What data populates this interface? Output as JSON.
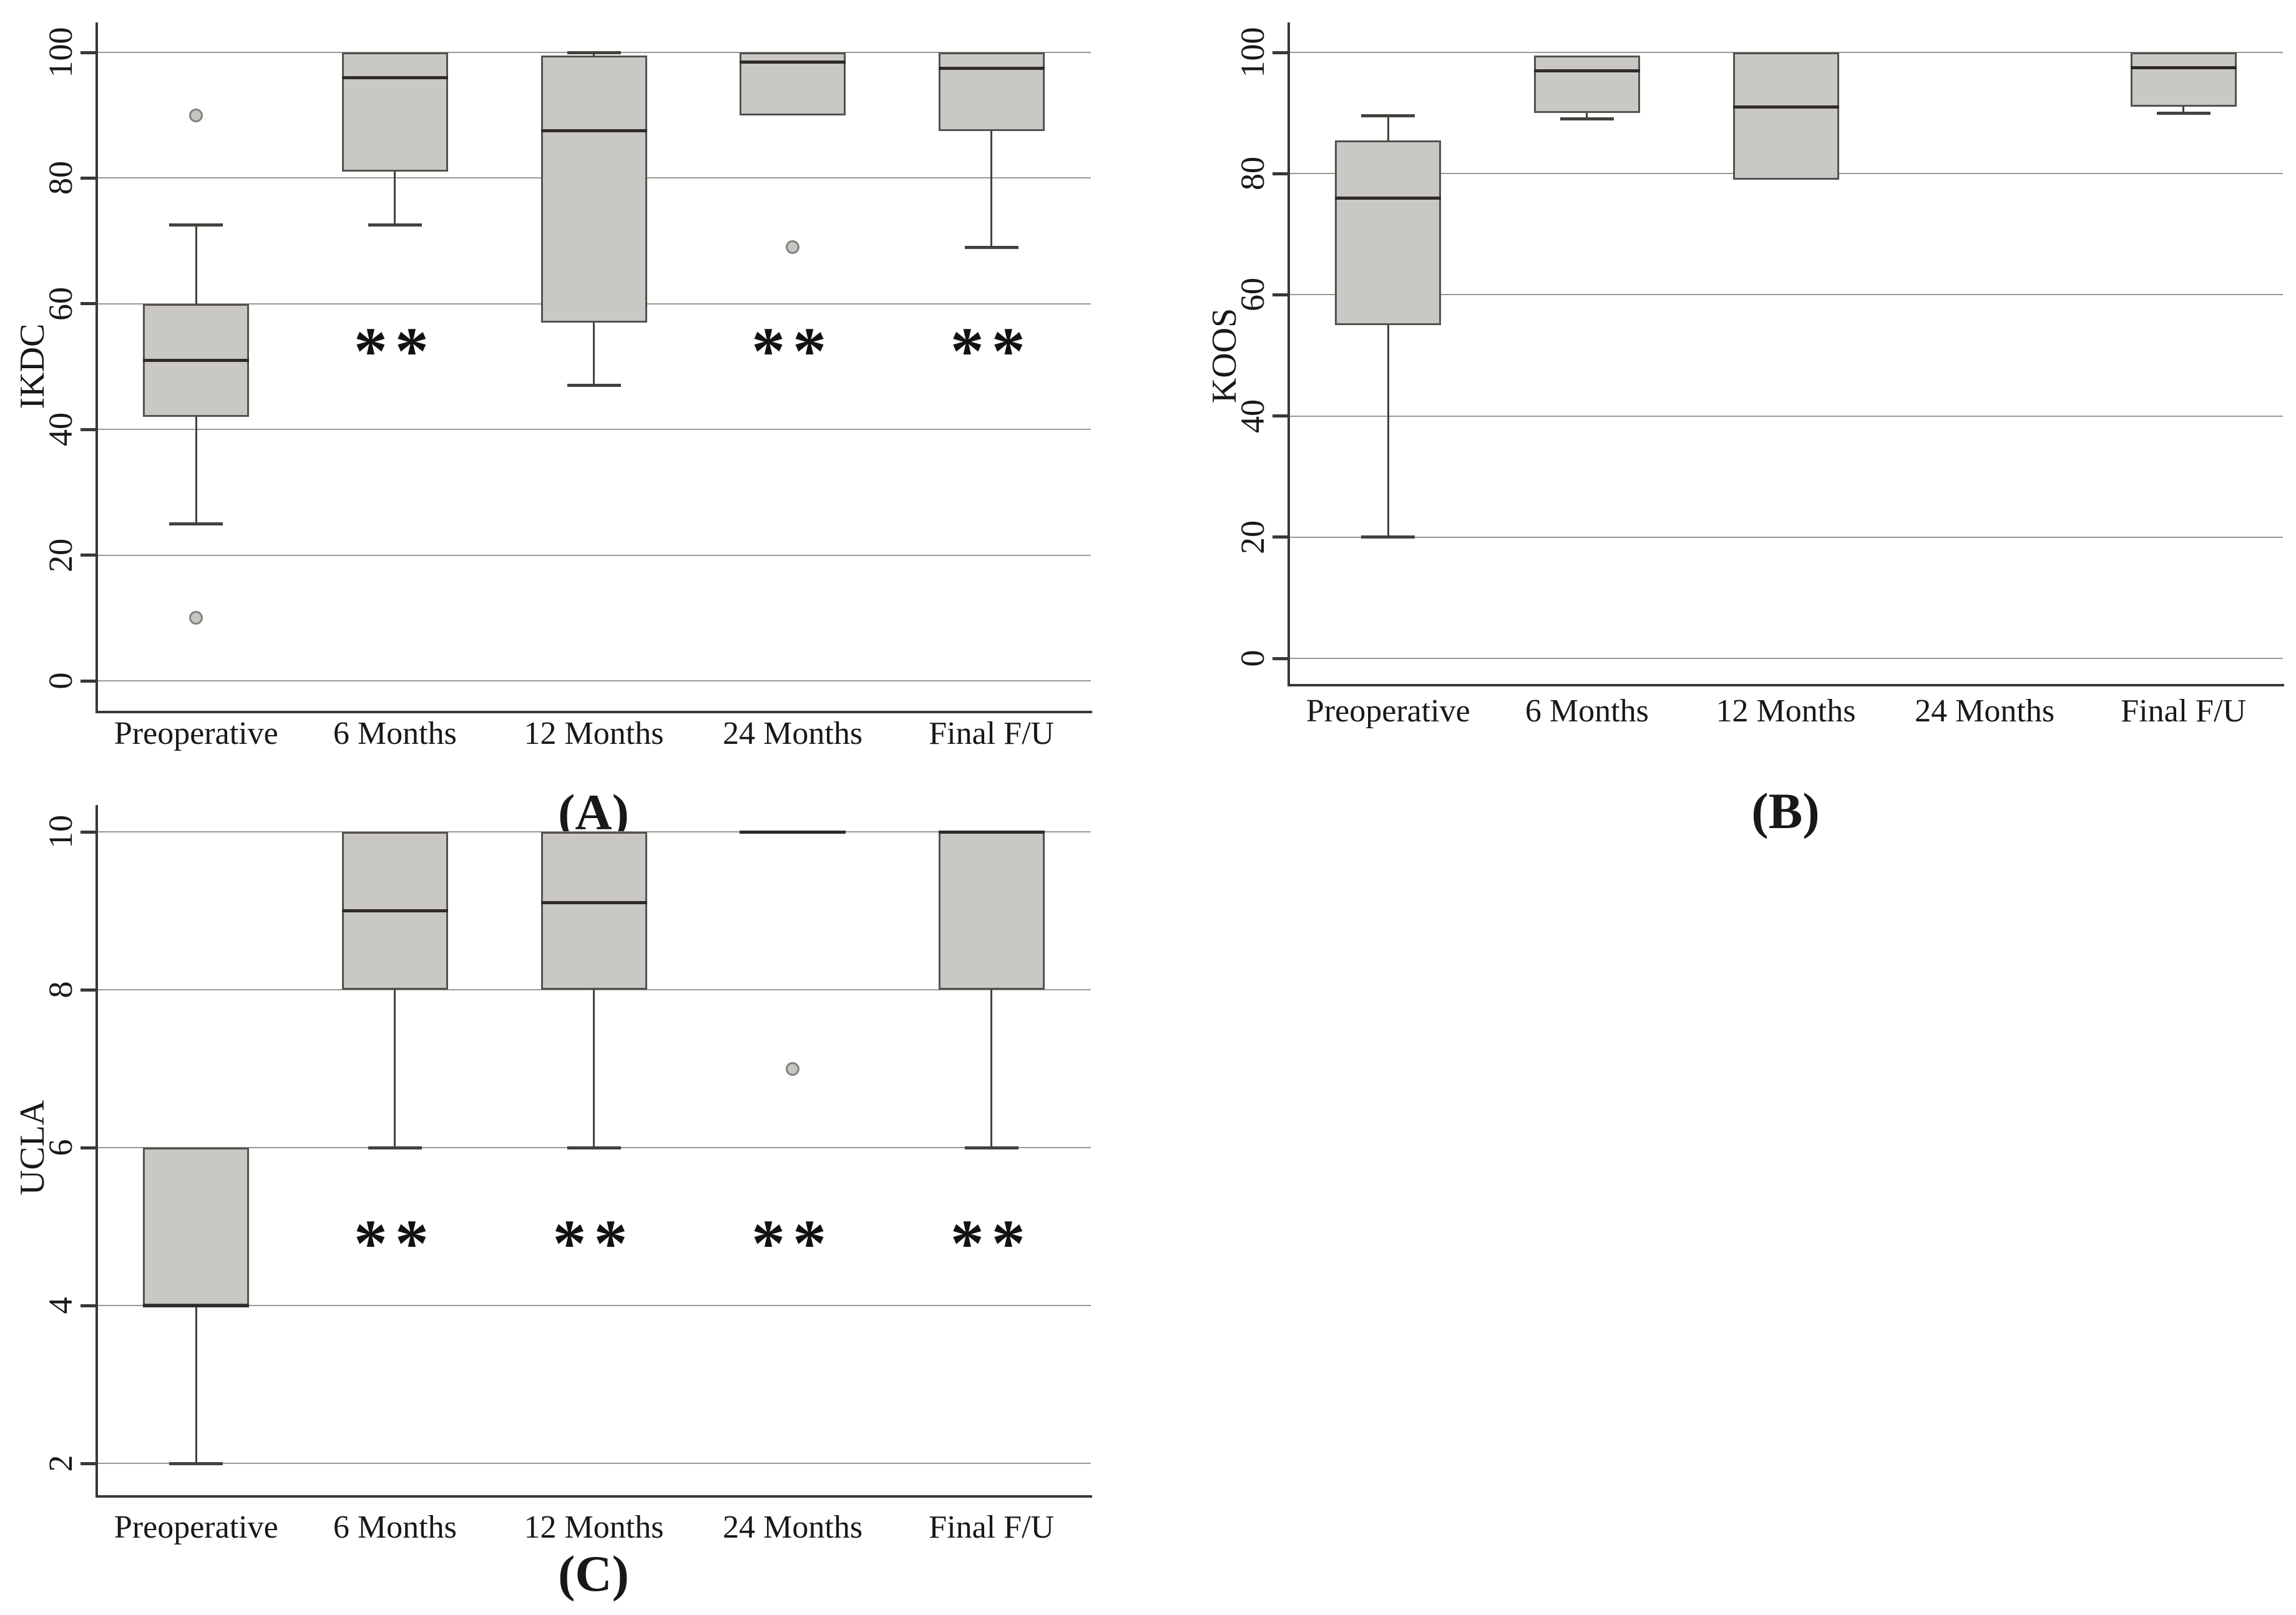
{
  "colors": {
    "background": "#ffffff",
    "box_fill": "#c9c8c5",
    "box_border": "#55514c",
    "median": "#2e2b28",
    "grid": "#9b9995",
    "axis": "#3c3935",
    "whisker": "#45423e",
    "outlier_fill": "#c6c5c2",
    "outlier_border": "#83817d",
    "text": "#1a1817"
  },
  "chart_data": [
    {
      "type": "box",
      "panel_label": "(A)",
      "ylabel": "IKDC",
      "ylim": [
        0,
        100
      ],
      "yticks": [
        0,
        20,
        40,
        60,
        80,
        100
      ],
      "grid": true,
      "legend": false,
      "categories": [
        "Preoperative",
        "6 Months",
        "12 Months",
        "24 Months",
        "Final F/U"
      ],
      "significance_marker": "**",
      "series": [
        {
          "category": "Preoperative",
          "q1": 42,
          "median": 51,
          "q3": 60,
          "whisker_low": 25,
          "whisker_high": 72.5,
          "outliers": [
            90,
            10
          ],
          "significant": false
        },
        {
          "category": "6 Months",
          "q1": 81,
          "median": 96,
          "q3": 100,
          "whisker_low": 72.5,
          "whisker_high": null,
          "outliers": [],
          "significant": true
        },
        {
          "category": "12 Months",
          "q1": 57,
          "median": 87.5,
          "q3": 99.5,
          "whisker_low": 47,
          "whisker_high": 100,
          "outliers": [],
          "significant": false
        },
        {
          "category": "24 Months",
          "q1": 90,
          "median": 98.5,
          "q3": 100,
          "whisker_low": null,
          "whisker_high": null,
          "outliers": [
            69
          ],
          "significant": true
        },
        {
          "category": "Final F/U",
          "q1": 87.5,
          "median": 97.5,
          "q3": 100,
          "whisker_low": 69,
          "whisker_high": null,
          "outliers": [],
          "significant": true
        }
      ]
    },
    {
      "type": "box",
      "panel_label": "(B)",
      "ylabel": "KOOS",
      "ylim": [
        0,
        100
      ],
      "yticks": [
        0,
        20,
        40,
        60,
        80,
        100
      ],
      "grid": true,
      "legend": false,
      "categories": [
        "Preoperative",
        "6 Months",
        "12 Months",
        "24 Months",
        "Final F/U"
      ],
      "significance_marker": "**",
      "series": [
        {
          "category": "Preoperative",
          "q1": 55,
          "median": 76,
          "q3": 85.5,
          "whisker_low": 20,
          "whisker_high": 89.5,
          "outliers": [],
          "significant": false
        },
        {
          "category": "6 Months",
          "q1": 90,
          "median": 97,
          "q3": 99.5,
          "whisker_low": 89,
          "whisker_high": null,
          "outliers": [],
          "significant": false
        },
        {
          "category": "12 Months",
          "q1": 79,
          "median": 91,
          "q3": 100,
          "whisker_low": null,
          "whisker_high": null,
          "outliers": [],
          "significant": false
        },
        {
          "category": "24 Months",
          "q1": null,
          "median": null,
          "q3": null,
          "whisker_low": null,
          "whisker_high": null,
          "outliers": [],
          "significant": false
        },
        {
          "category": "Final F/U",
          "q1": 91,
          "median": 97.5,
          "q3": 100,
          "whisker_low": 90,
          "whisker_high": null,
          "outliers": [],
          "significant": false
        }
      ]
    },
    {
      "type": "box",
      "panel_label": "(C)",
      "ylabel": "UCLA",
      "ylim": [
        2,
        10
      ],
      "yticks": [
        2,
        4,
        6,
        8,
        10
      ],
      "grid": true,
      "legend": false,
      "categories": [
        "Preoperative",
        "6 Months",
        "12 Months",
        "24 Months",
        "Final F/U"
      ],
      "significance_marker": "**",
      "series": [
        {
          "category": "Preoperative",
          "q1": 4,
          "median": 4,
          "q3": 6,
          "whisker_low": 2,
          "whisker_high": null,
          "outliers": [],
          "significant": false
        },
        {
          "category": "6 Months",
          "q1": 8,
          "median": 9,
          "q3": 10,
          "whisker_low": 6,
          "whisker_high": null,
          "outliers": [],
          "significant": true
        },
        {
          "category": "12 Months",
          "q1": 8,
          "median": 9.1,
          "q3": 10,
          "whisker_low": 6,
          "whisker_high": null,
          "outliers": [],
          "significant": true
        },
        {
          "category": "24 Months",
          "q1": 10,
          "median": 10,
          "q3": 10,
          "whisker_low": null,
          "whisker_high": null,
          "outliers": [
            7
          ],
          "significant": true
        },
        {
          "category": "Final F/U",
          "q1": 8,
          "median": 10,
          "q3": 10,
          "whisker_low": 6,
          "whisker_high": null,
          "outliers": [],
          "significant": true
        }
      ]
    }
  ]
}
